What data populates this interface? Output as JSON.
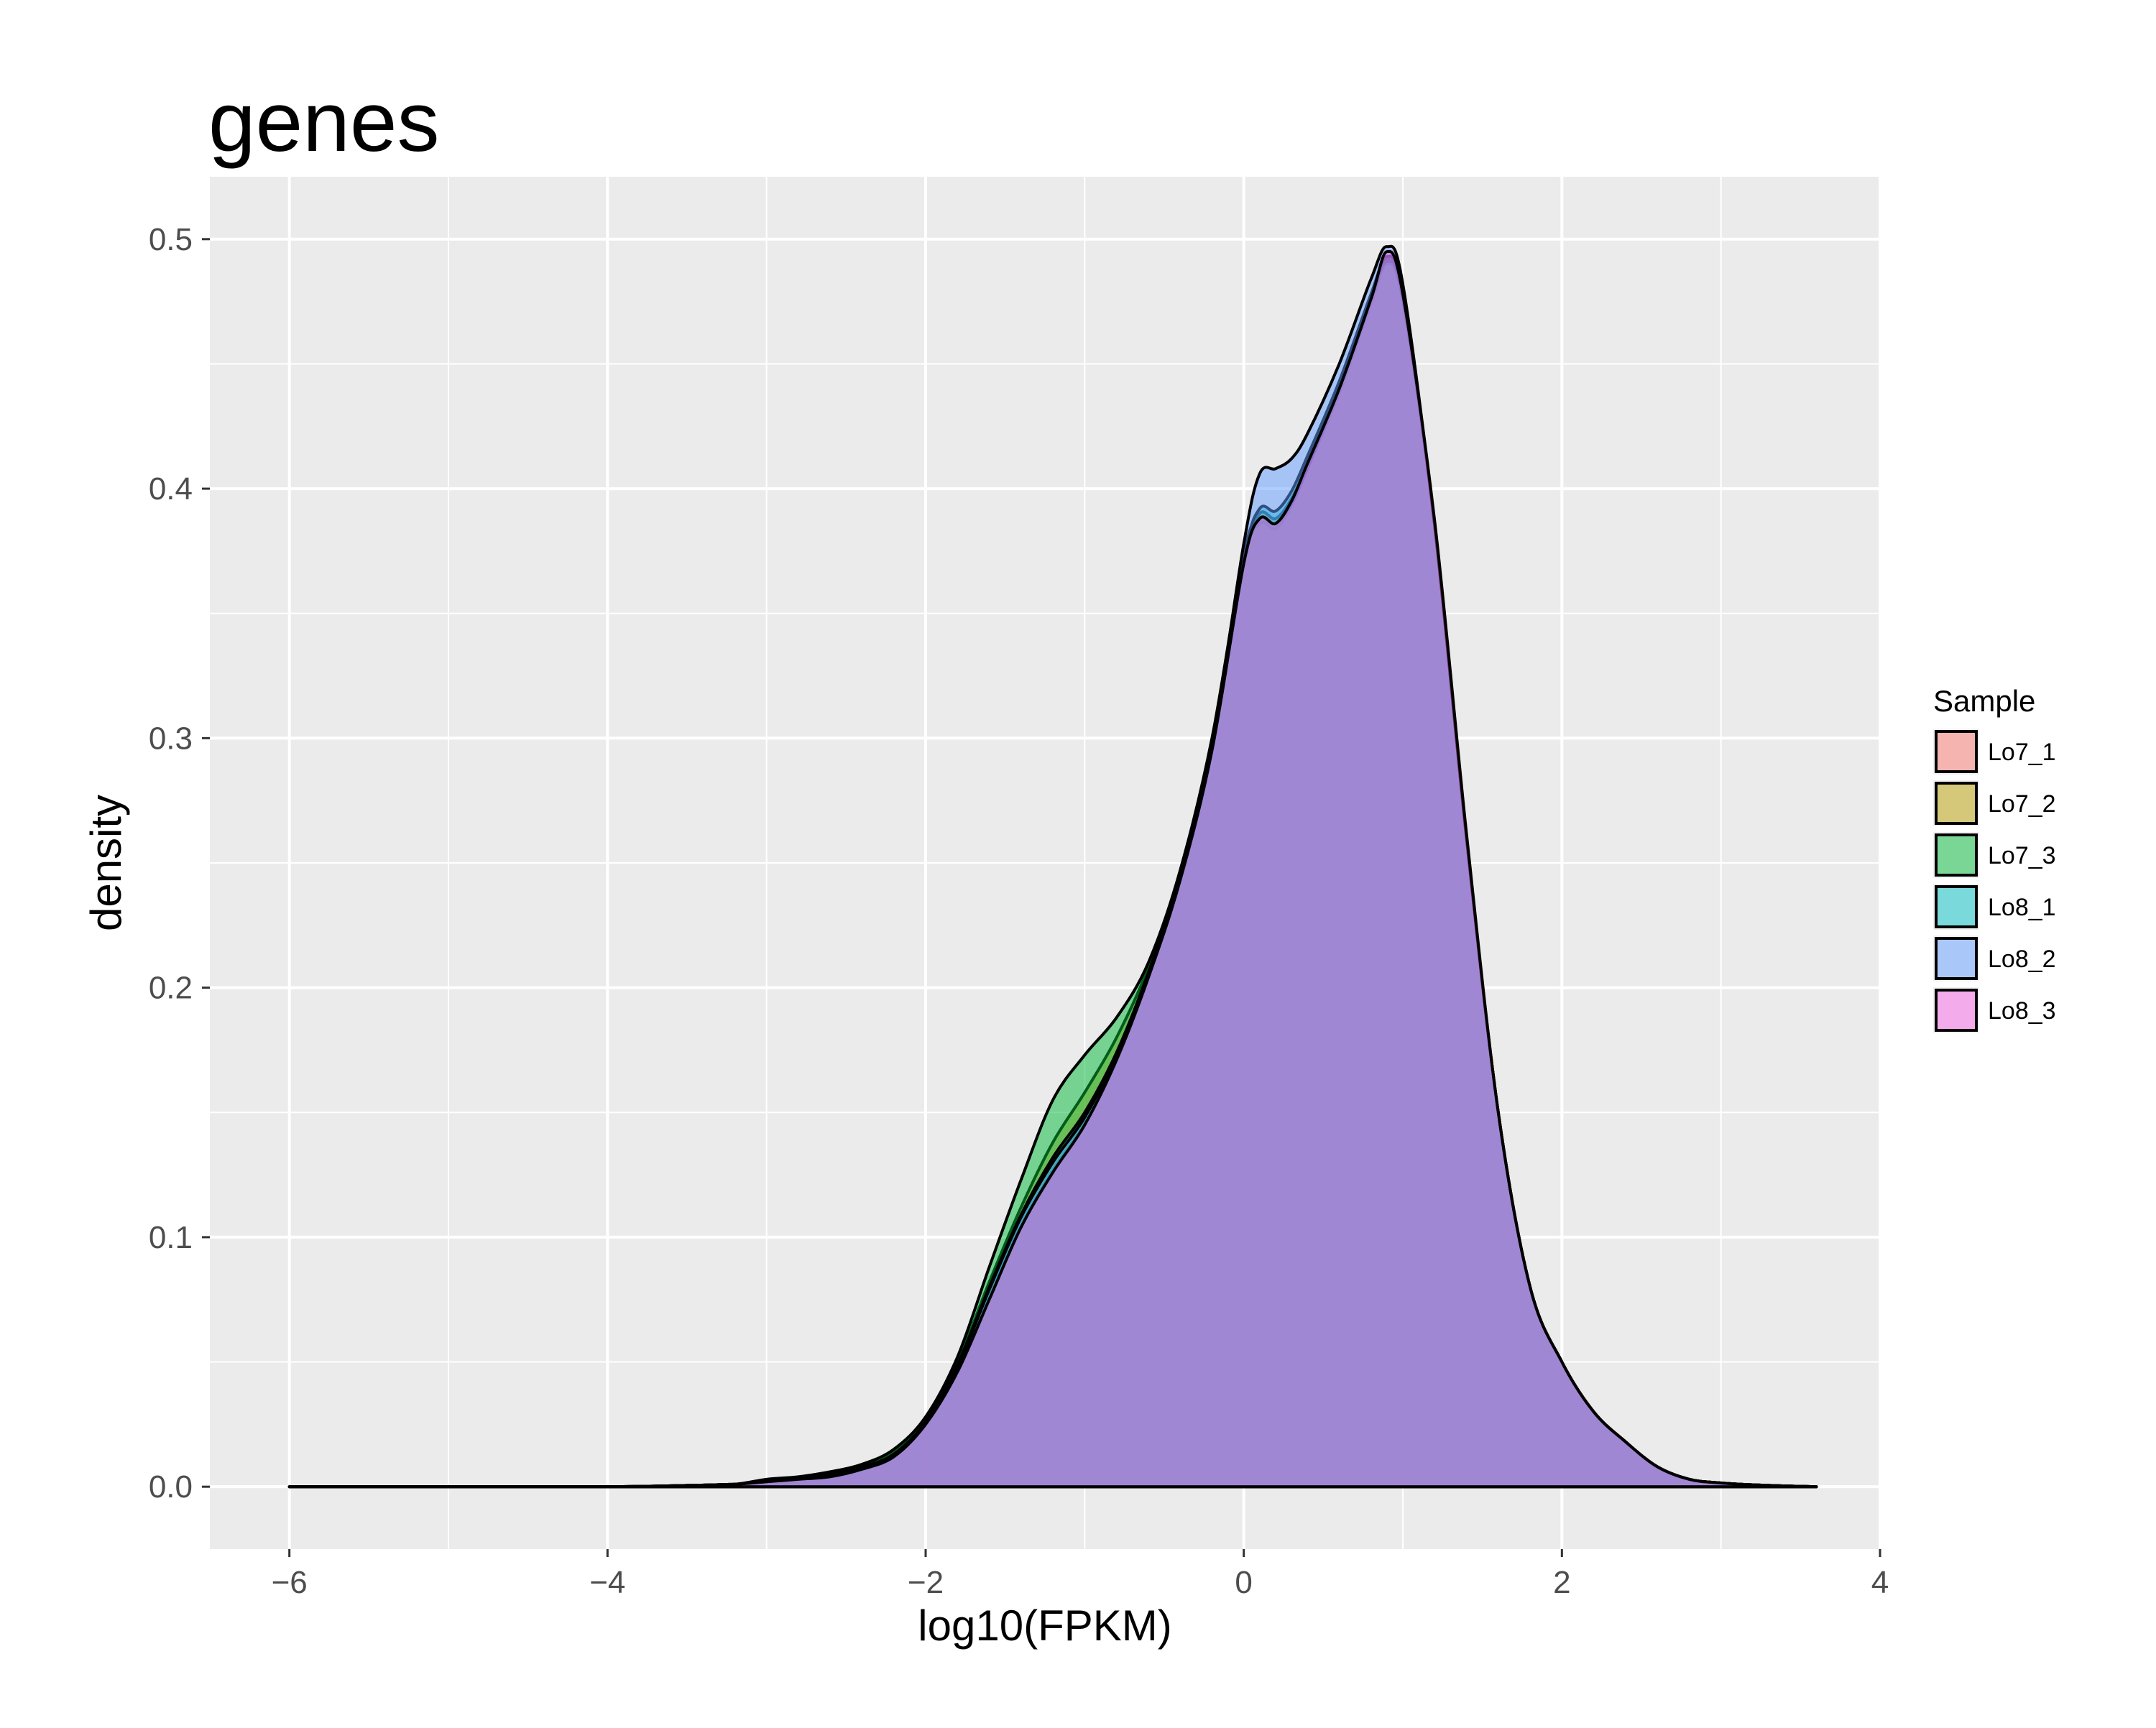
{
  "chart_data": {
    "type": "area",
    "title": "genes",
    "xlabel": "log10(FPKM)",
    "ylabel": "density",
    "xlim": [
      -6.5,
      4.0
    ],
    "ylim": [
      -0.025,
      0.525
    ],
    "x_ticks": [
      -6,
      -4,
      -2,
      0,
      2,
      4
    ],
    "x_tick_labels": [
      "−6",
      "−4",
      "−2",
      "0",
      "2",
      "4"
    ],
    "y_ticks": [
      0.0,
      0.1,
      0.2,
      0.3,
      0.4,
      0.5
    ],
    "y_tick_labels": [
      "0.0",
      "0.1",
      "0.2",
      "0.3",
      "0.4",
      "0.5"
    ],
    "grid": true,
    "background": "#ebebeb",
    "legend": {
      "title": "Sample",
      "position": "right"
    },
    "x": [
      -6.0,
      -5.0,
      -4.0,
      -3.5,
      -3.2,
      -3.0,
      -2.8,
      -2.6,
      -2.4,
      -2.2,
      -2.0,
      -1.8,
      -1.6,
      -1.4,
      -1.2,
      -1.0,
      -0.8,
      -0.6,
      -0.4,
      -0.2,
      0.0,
      0.1,
      0.2,
      0.3,
      0.4,
      0.6,
      0.8,
      0.9,
      1.0,
      1.2,
      1.4,
      1.6,
      1.8,
      2.0,
      2.2,
      2.4,
      2.6,
      2.8,
      3.0,
      3.3,
      3.6
    ],
    "series": [
      {
        "name": "Lo7_1",
        "color": "#F8766D",
        "values": [
          0.0,
          0.0,
          0.0,
          0.0005,
          0.001,
          0.002,
          0.003,
          0.004,
          0.007,
          0.012,
          0.025,
          0.047,
          0.077,
          0.105,
          0.127,
          0.146,
          0.172,
          0.205,
          0.243,
          0.295,
          0.37,
          0.386,
          0.384,
          0.393,
          0.408,
          0.438,
          0.474,
          0.49,
          0.475,
          0.385,
          0.26,
          0.15,
          0.08,
          0.05,
          0.03,
          0.018,
          0.008,
          0.003,
          0.0015,
          0.0005,
          0.0
        ]
      },
      {
        "name": "Lo7_2",
        "color": "#B79F00",
        "values": [
          0.0,
          0.0,
          0.0,
          0.0005,
          0.001,
          0.002,
          0.003,
          0.005,
          0.008,
          0.014,
          0.027,
          0.05,
          0.082,
          0.112,
          0.138,
          0.158,
          0.18,
          0.208,
          0.245,
          0.297,
          0.372,
          0.39,
          0.388,
          0.396,
          0.41,
          0.441,
          0.477,
          0.492,
          0.477,
          0.385,
          0.26,
          0.15,
          0.08,
          0.05,
          0.03,
          0.018,
          0.008,
          0.003,
          0.0015,
          0.0005,
          0.0
        ]
      },
      {
        "name": "Lo7_3",
        "color": "#00BA38",
        "values": [
          0.0,
          0.0,
          0.0,
          0.0005,
          0.001,
          0.003,
          0.004,
          0.006,
          0.009,
          0.015,
          0.028,
          0.052,
          0.088,
          0.123,
          0.155,
          0.173,
          0.188,
          0.21,
          0.247,
          0.3,
          0.374,
          0.388,
          0.386,
          0.394,
          0.408,
          0.44,
          0.476,
          0.491,
          0.476,
          0.385,
          0.26,
          0.15,
          0.08,
          0.05,
          0.03,
          0.018,
          0.008,
          0.003,
          0.0015,
          0.0005,
          0.0
        ]
      },
      {
        "name": "Lo8_1",
        "color": "#00BFC4",
        "values": [
          0.0,
          0.0,
          0.0,
          0.0005,
          0.001,
          0.002,
          0.003,
          0.005,
          0.008,
          0.013,
          0.026,
          0.049,
          0.08,
          0.109,
          0.132,
          0.15,
          0.174,
          0.206,
          0.244,
          0.296,
          0.372,
          0.392,
          0.391,
          0.399,
          0.413,
          0.443,
          0.478,
          0.493,
          0.478,
          0.385,
          0.26,
          0.15,
          0.08,
          0.05,
          0.03,
          0.018,
          0.008,
          0.003,
          0.0015,
          0.0005,
          0.0
        ]
      },
      {
        "name": "Lo8_2",
        "color": "#619CFF",
        "values": [
          0.0,
          0.0,
          0.0,
          0.0005,
          0.001,
          0.002,
          0.003,
          0.005,
          0.008,
          0.013,
          0.026,
          0.048,
          0.079,
          0.108,
          0.13,
          0.148,
          0.173,
          0.206,
          0.244,
          0.297,
          0.378,
          0.406,
          0.408,
          0.412,
          0.422,
          0.45,
          0.484,
          0.497,
          0.482,
          0.385,
          0.26,
          0.15,
          0.08,
          0.05,
          0.03,
          0.018,
          0.008,
          0.003,
          0.0015,
          0.0005,
          0.0
        ]
      },
      {
        "name": "Lo8_3",
        "color": "#F564E3",
        "values": [
          0.0,
          0.0,
          0.0,
          0.0005,
          0.001,
          0.002,
          0.003,
          0.004,
          0.007,
          0.012,
          0.025,
          0.046,
          0.075,
          0.104,
          0.126,
          0.145,
          0.171,
          0.204,
          0.243,
          0.295,
          0.37,
          0.388,
          0.386,
          0.395,
          0.41,
          0.44,
          0.476,
          0.495,
          0.478,
          0.387,
          0.262,
          0.15,
          0.08,
          0.05,
          0.03,
          0.018,
          0.008,
          0.003,
          0.0015,
          0.0005,
          0.0
        ]
      }
    ]
  }
}
